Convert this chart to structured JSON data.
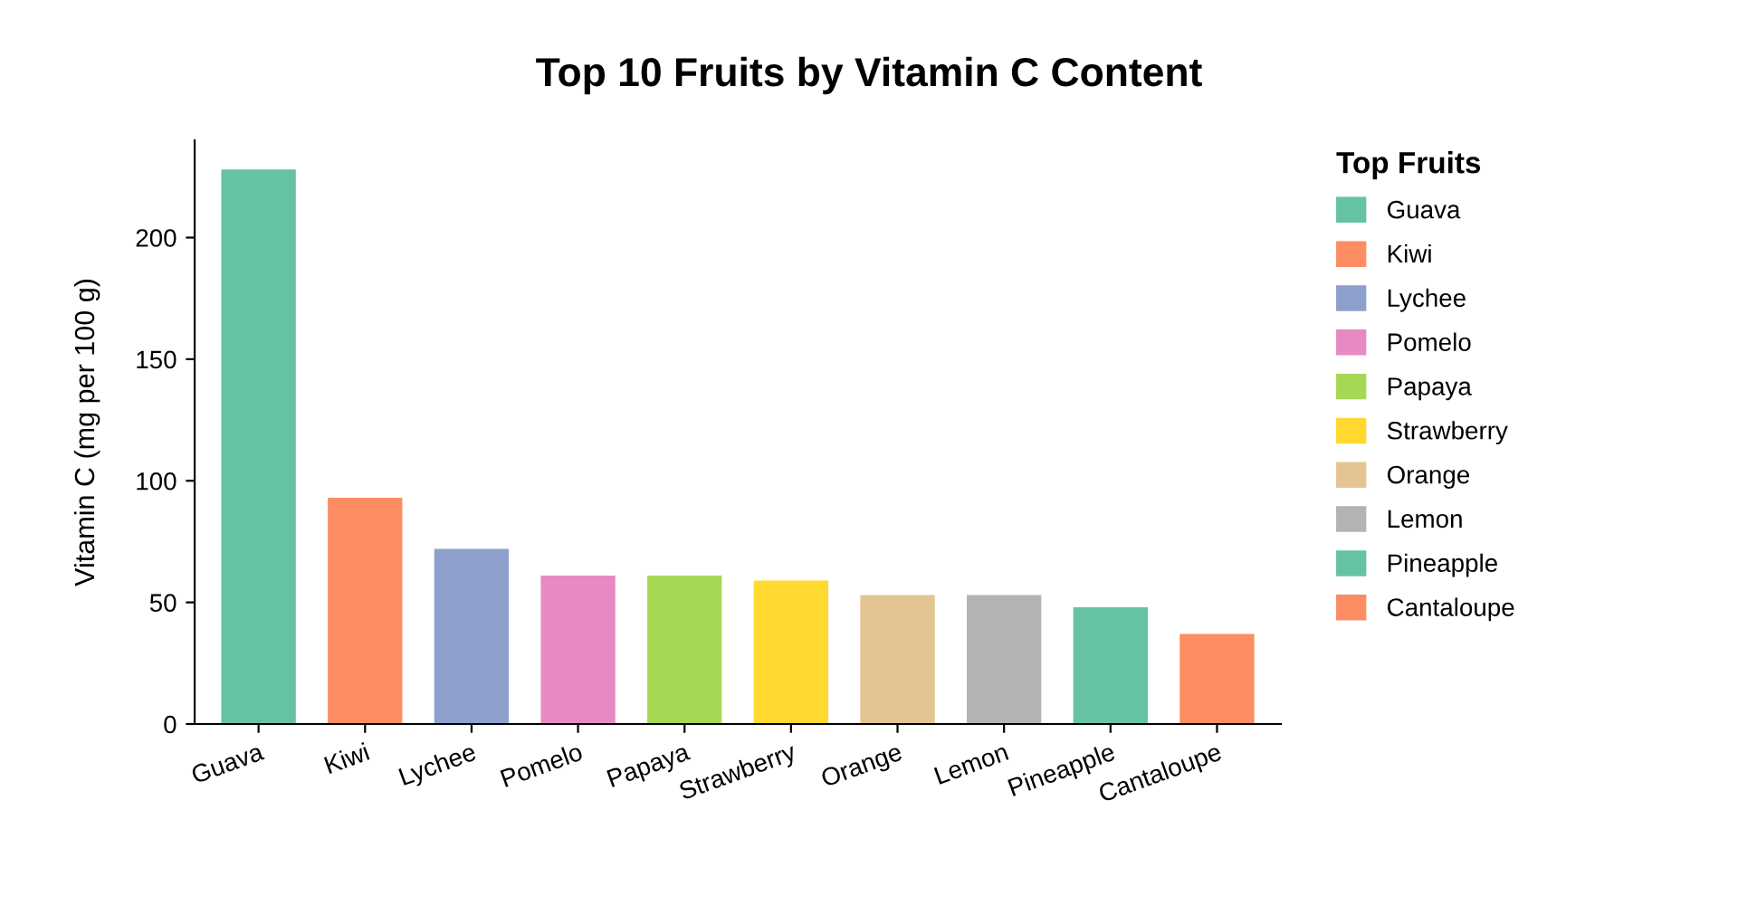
{
  "chart_data": {
    "type": "bar",
    "title": "Top 10 Fruits by Vitamin C Content",
    "ylabel": "Vitamin C (mg per 100 g)",
    "legend_title": "Top Fruits",
    "categories": [
      "Guava",
      "Kiwi",
      "Lychee",
      "Pomelo",
      "Papaya",
      "Strawberry",
      "Orange",
      "Lemon",
      "Pineapple",
      "Cantaloupe"
    ],
    "series": [
      {
        "name": "Guava",
        "color": "#66c2a5",
        "values": [
          228,
          null,
          null,
          null,
          null,
          null,
          null,
          null,
          null,
          null
        ]
      },
      {
        "name": "Kiwi",
        "color": "#fc8d62",
        "values": [
          null,
          93,
          null,
          null,
          null,
          null,
          null,
          null,
          null,
          null
        ]
      },
      {
        "name": "Lychee",
        "color": "#8da0cb",
        "values": [
          null,
          null,
          72,
          null,
          null,
          null,
          null,
          null,
          null,
          null
        ]
      },
      {
        "name": "Pomelo",
        "color": "#e78ac3",
        "values": [
          null,
          null,
          null,
          61,
          null,
          null,
          null,
          null,
          null,
          null
        ]
      },
      {
        "name": "Papaya",
        "color": "#a6d854",
        "values": [
          null,
          null,
          null,
          null,
          61,
          null,
          null,
          null,
          null,
          null
        ]
      },
      {
        "name": "Strawberry",
        "color": "#ffd92f",
        "values": [
          null,
          null,
          null,
          null,
          null,
          59,
          null,
          null,
          null,
          null
        ]
      },
      {
        "name": "Orange",
        "color": "#e5c494",
        "values": [
          null,
          null,
          null,
          null,
          null,
          null,
          53,
          null,
          null,
          null
        ]
      },
      {
        "name": "Lemon",
        "color": "#b3b3b3",
        "values": [
          null,
          null,
          null,
          null,
          null,
          null,
          null,
          53,
          null,
          null
        ]
      },
      {
        "name": "Pineapple",
        "color": "#66c2a5",
        "values": [
          null,
          null,
          null,
          null,
          null,
          null,
          null,
          null,
          48,
          null
        ]
      },
      {
        "name": "Cantaloupe",
        "color": "#fc8d62",
        "values": [
          null,
          null,
          null,
          null,
          null,
          null,
          null,
          null,
          null,
          37
        ]
      }
    ],
    "ylim": [
      0,
      240
    ],
    "yticks": [
      0,
      50,
      100,
      150,
      200
    ],
    "grid": false,
    "legend": "top right"
  }
}
